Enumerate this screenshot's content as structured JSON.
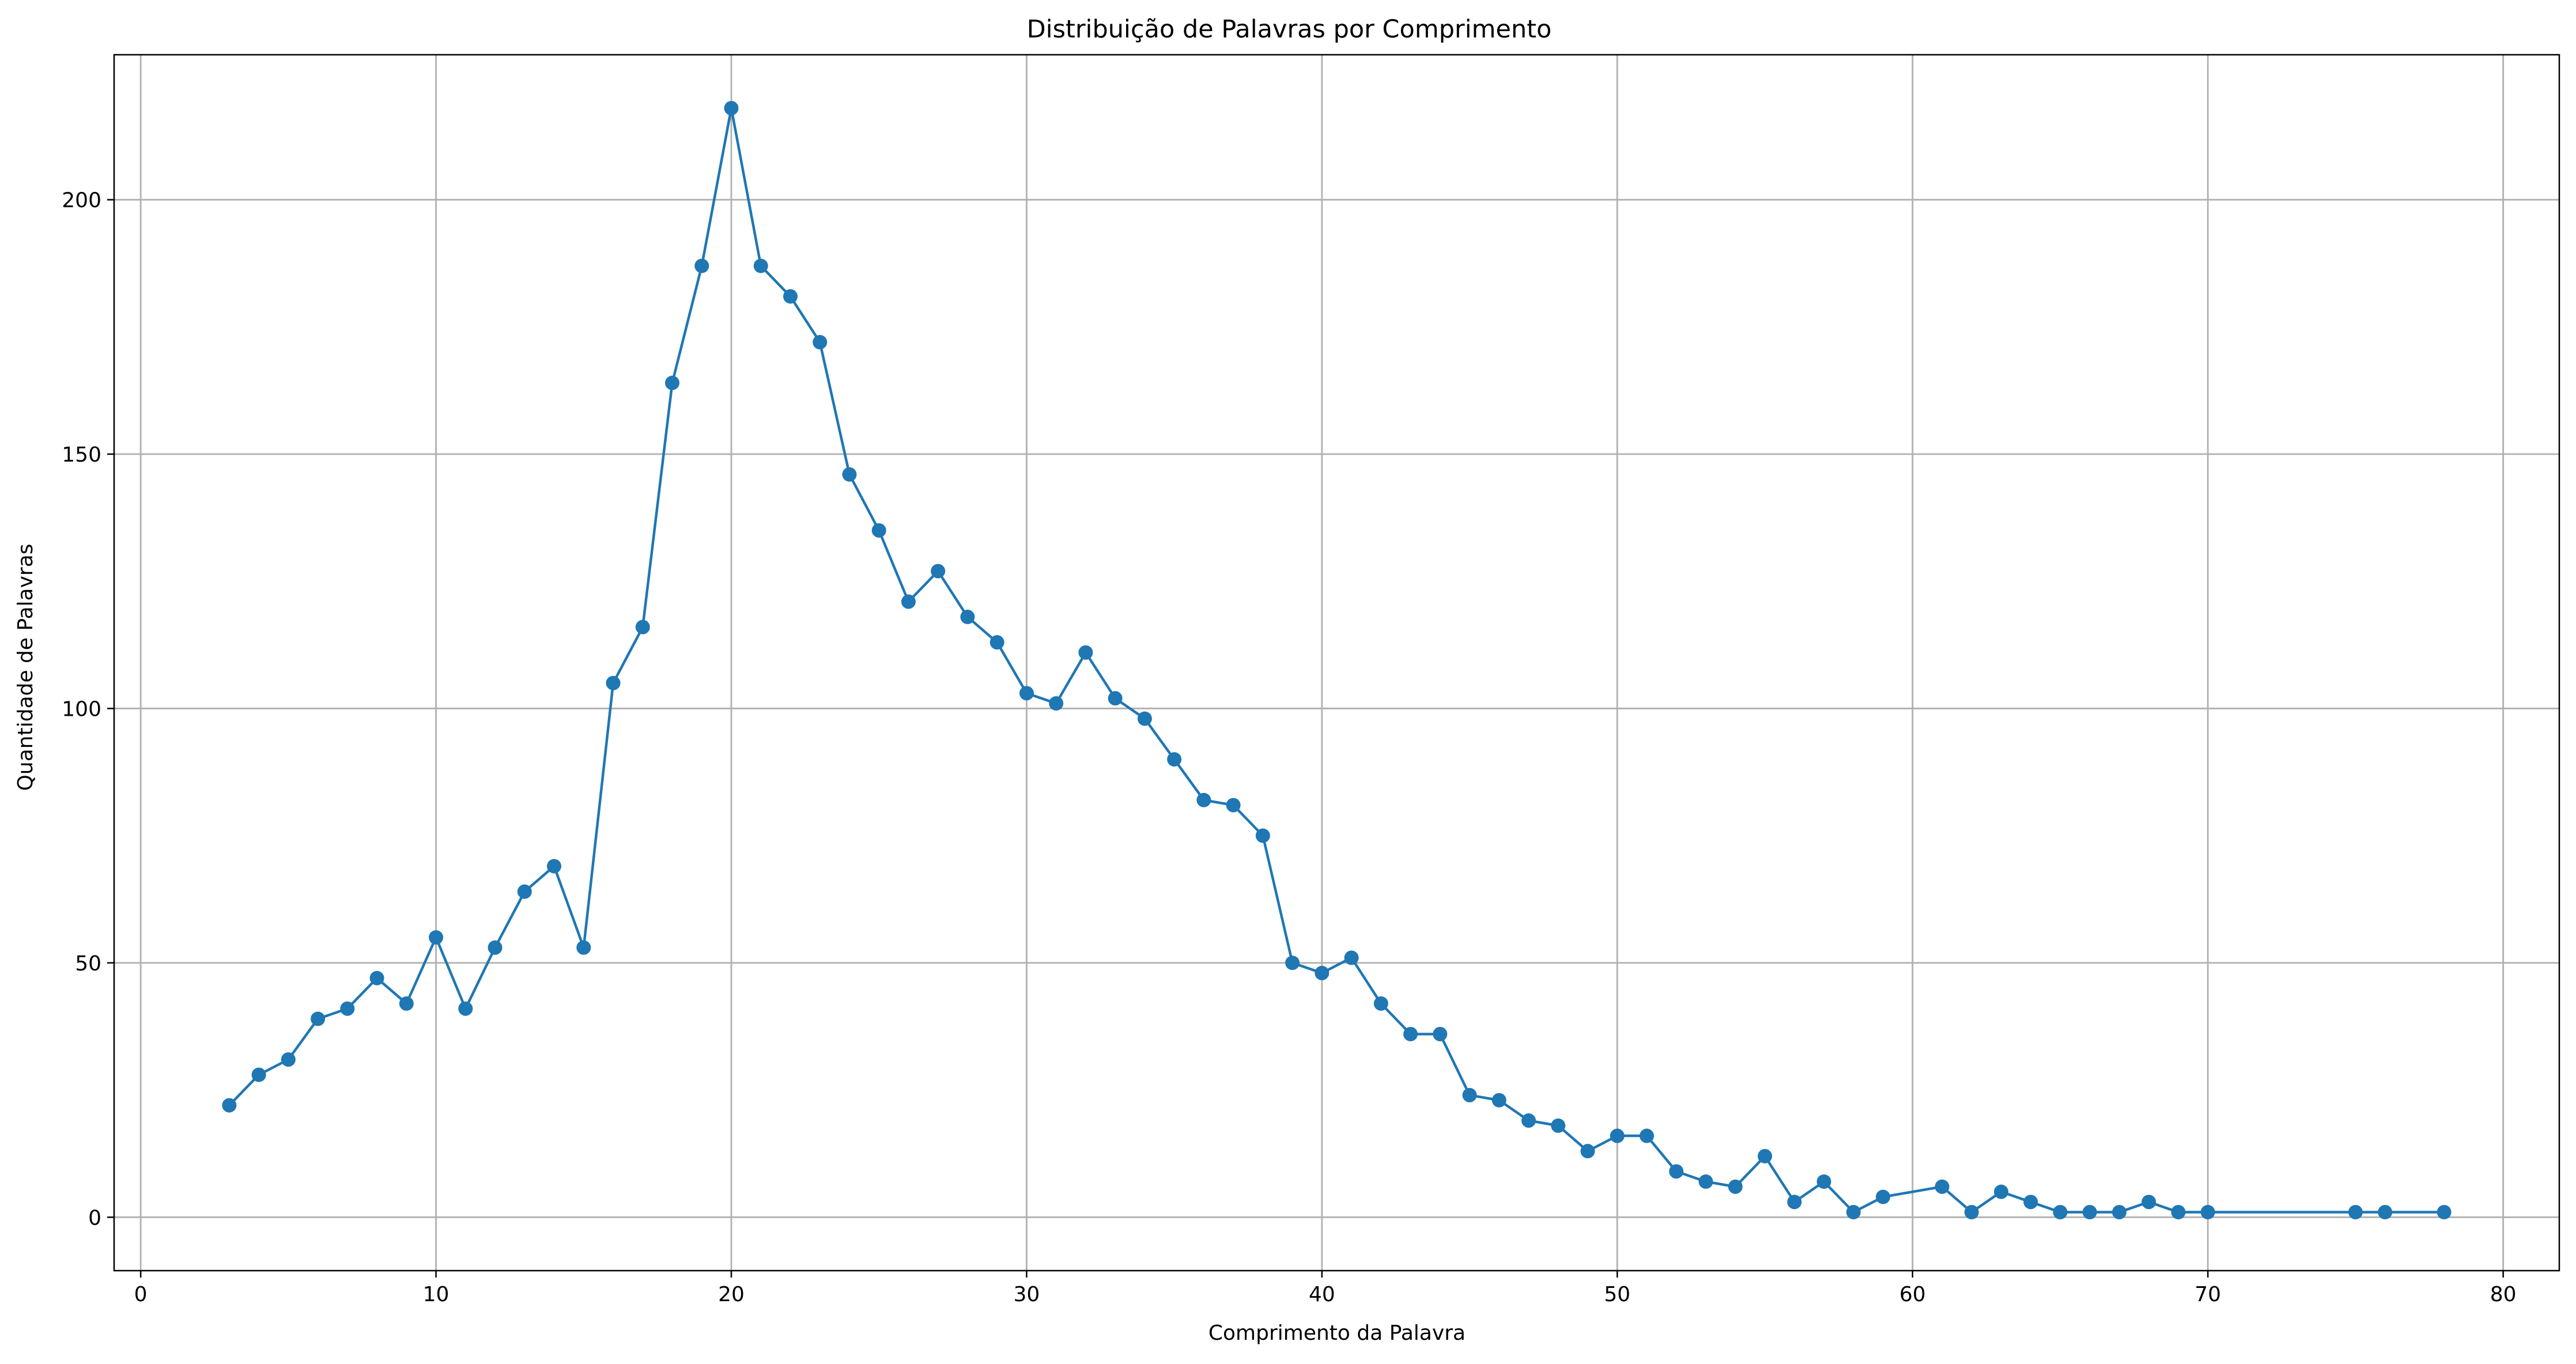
{
  "chart_data": {
    "type": "line",
    "title": "Distribuição de Palavras por Comprimento",
    "xlabel": "Comprimento da Palavra",
    "ylabel": "Quantidade de Palavras",
    "xlim": [
      -0.9,
      81.9
    ],
    "ylim": [
      -10.5,
      228.5
    ],
    "xticks": [
      0,
      10,
      20,
      30,
      40,
      50,
      60,
      70,
      80
    ],
    "yticks": [
      0,
      50,
      100,
      150,
      200
    ],
    "grid": true,
    "marker": "circle",
    "color": "#1f77b4",
    "series": [
      {
        "x": [
          3,
          4,
          5,
          6,
          7,
          8,
          9,
          10,
          11,
          12,
          13,
          14,
          15,
          16,
          17,
          18,
          19,
          20,
          21,
          22,
          23,
          24,
          25,
          26,
          27,
          28,
          29,
          30,
          31,
          32,
          33,
          34,
          35,
          36,
          37,
          38,
          39,
          40,
          41,
          42,
          43,
          44,
          45,
          46,
          47,
          48,
          49,
          50,
          51,
          52,
          53,
          54,
          55,
          56,
          57,
          58,
          59,
          61,
          62,
          63,
          64,
          65,
          66,
          67,
          68,
          69,
          70,
          75,
          76,
          78
        ],
        "y": [
          22,
          28,
          31,
          39,
          41,
          47,
          42,
          55,
          41,
          53,
          64,
          69,
          53,
          105,
          116,
          164,
          187,
          218,
          187,
          181,
          172,
          146,
          135,
          121,
          127,
          118,
          113,
          103,
          101,
          111,
          102,
          98,
          90,
          82,
          81,
          75,
          50,
          48,
          51,
          42,
          36,
          36,
          24,
          23,
          19,
          18,
          13,
          16,
          16,
          9,
          7,
          6,
          12,
          3,
          7,
          1,
          4,
          6,
          1,
          5,
          3,
          1,
          1,
          1,
          3,
          1,
          1,
          1,
          1,
          1
        ]
      }
    ]
  }
}
